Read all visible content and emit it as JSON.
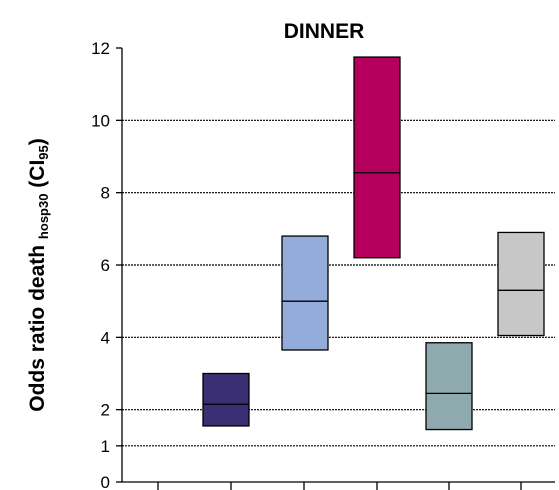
{
  "chart_data": {
    "type": "box",
    "title": "DINNER",
    "ylabel": {
      "main": "Odds ratio death",
      "subscript": "hosp30",
      "ci_prefix": "(CI",
      "ci_subscript": "95",
      "ci_suffix": ")"
    },
    "ylim": [
      0,
      12
    ],
    "yticks": [
      "0",
      "1",
      "2",
      "4",
      "6",
      "8",
      "10",
      "12"
    ],
    "ytick_values": [
      0,
      1,
      2,
      4,
      6,
      8,
      10,
      12
    ],
    "gridlines": [
      1,
      2,
      4,
      6,
      8,
      10
    ],
    "boxes": [
      {
        "low": 1.55,
        "median": 2.15,
        "high": 3.0,
        "color": "#3b2f74"
      },
      {
        "low": 3.65,
        "median": 5.0,
        "high": 6.8,
        "color": "#94acd9"
      },
      {
        "low": 6.2,
        "median": 8.55,
        "high": 11.75,
        "color": "#b5005f"
      },
      {
        "low": 1.45,
        "median": 2.45,
        "high": 3.85,
        "color": "#8eaaae"
      },
      {
        "low": 4.05,
        "median": 5.3,
        "high": 6.9,
        "color": "#c7c7c7"
      }
    ]
  }
}
